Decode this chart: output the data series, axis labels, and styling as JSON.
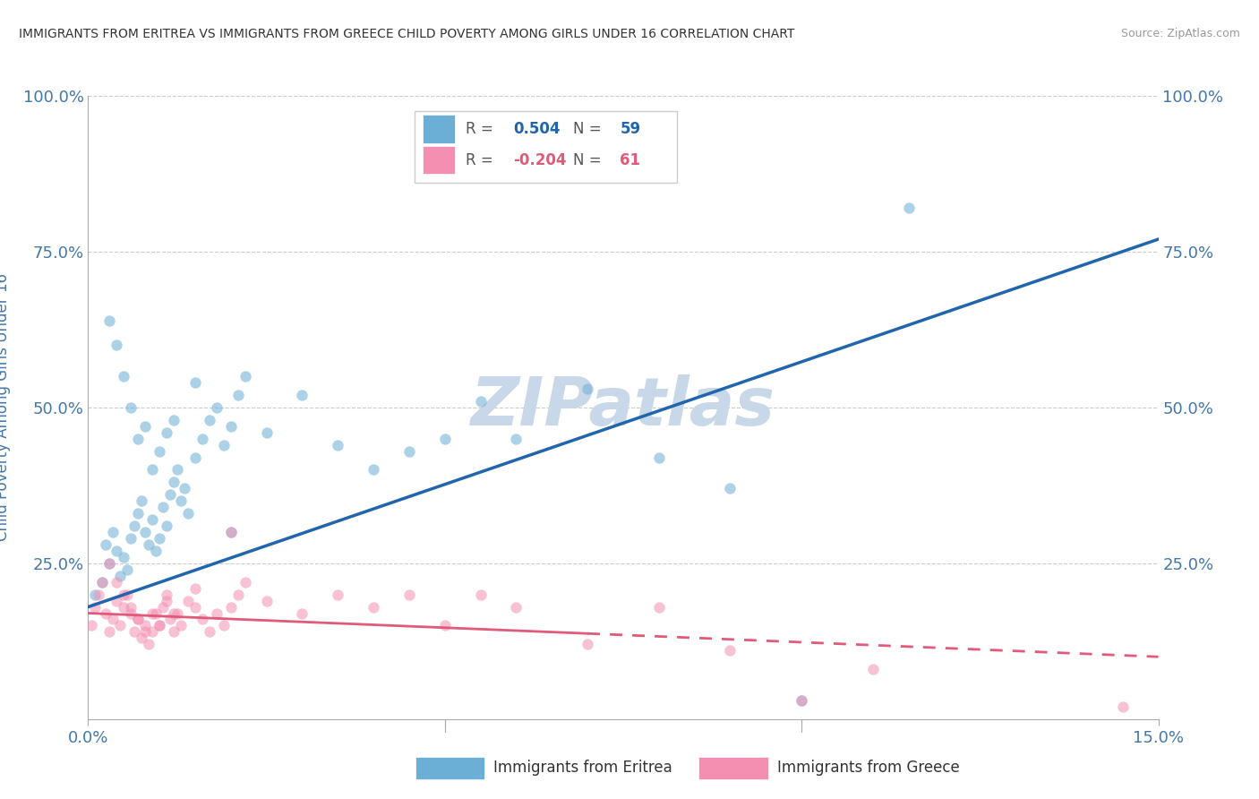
{
  "title": "IMMIGRANTS FROM ERITREA VS IMMIGRANTS FROM GREECE CHILD POVERTY AMONG GIRLS UNDER 16 CORRELATION CHART",
  "source": "Source: ZipAtlas.com",
  "ylabel_label": "Child Poverty Among Girls Under 16",
  "xlim": [
    0,
    15
  ],
  "ylim": [
    0,
    100
  ],
  "x_ticks": [
    0,
    5,
    10,
    15
  ],
  "y_ticks": [
    0,
    25,
    50,
    75,
    100
  ],
  "x_tick_labels": [
    "0.0%",
    "",
    "",
    "15.0%"
  ],
  "y_tick_labels": [
    "",
    "25.0%",
    "50.0%",
    "75.0%",
    "100.0%"
  ],
  "legend1_r": "0.504",
  "legend1_n": "59",
  "legend2_r": "-0.204",
  "legend2_n": "61",
  "blue_line_color": "#2166ac",
  "pink_line_color": "#e05a7a",
  "watermark": "ZIPatlas",
  "watermark_color": "#c8d8e8",
  "background_color": "#ffffff",
  "grid_color": "#cccccc",
  "title_color": "#333333",
  "tick_label_color": "#4477aa",
  "scatter_blue_color": "#6baed6",
  "scatter_pink_color": "#f48fb1",
  "scatter_alpha": 0.55,
  "scatter_size": 80,
  "blue_scatter_x": [
    0.1,
    0.2,
    0.25,
    0.3,
    0.35,
    0.4,
    0.45,
    0.5,
    0.55,
    0.6,
    0.65,
    0.7,
    0.75,
    0.8,
    0.85,
    0.9,
    0.95,
    1.0,
    1.05,
    1.1,
    1.15,
    1.2,
    1.25,
    1.3,
    1.35,
    1.4,
    1.5,
    1.6,
    1.7,
    1.8,
    1.9,
    2.0,
    2.1,
    2.2,
    2.5,
    3.0,
    3.5,
    4.0,
    4.5,
    5.0,
    5.5,
    6.0,
    7.0,
    8.0,
    9.0,
    10.0,
    0.3,
    0.4,
    0.5,
    0.6,
    0.7,
    0.8,
    0.9,
    1.0,
    1.1,
    1.2,
    1.5,
    2.0,
    11.5
  ],
  "blue_scatter_y": [
    20,
    22,
    28,
    25,
    30,
    27,
    23,
    26,
    24,
    29,
    31,
    33,
    35,
    30,
    28,
    32,
    27,
    29,
    34,
    31,
    36,
    38,
    40,
    35,
    37,
    33,
    42,
    45,
    48,
    50,
    44,
    47,
    52,
    55,
    46,
    52,
    44,
    40,
    43,
    45,
    51,
    45,
    53,
    42,
    37,
    3,
    64,
    60,
    55,
    50,
    45,
    47,
    40,
    43,
    46,
    48,
    54,
    30,
    82
  ],
  "pink_scatter_x": [
    0.05,
    0.1,
    0.15,
    0.2,
    0.25,
    0.3,
    0.35,
    0.4,
    0.45,
    0.5,
    0.55,
    0.6,
    0.65,
    0.7,
    0.75,
    0.8,
    0.85,
    0.9,
    0.95,
    1.0,
    1.05,
    1.1,
    1.15,
    1.2,
    1.25,
    1.3,
    1.4,
    1.5,
    1.6,
    1.7,
    1.8,
    1.9,
    2.0,
    2.1,
    2.2,
    2.5,
    3.0,
    3.5,
    4.0,
    4.5,
    5.0,
    5.5,
    6.0,
    7.0,
    8.0,
    9.0,
    10.0,
    11.0,
    0.3,
    0.4,
    0.5,
    0.6,
    0.7,
    0.8,
    0.9,
    1.0,
    1.1,
    1.2,
    1.5,
    2.0,
    14.5
  ],
  "pink_scatter_y": [
    15,
    18,
    20,
    22,
    17,
    14,
    16,
    19,
    15,
    18,
    20,
    17,
    14,
    16,
    13,
    15,
    12,
    14,
    17,
    15,
    18,
    20,
    16,
    14,
    17,
    15,
    19,
    18,
    16,
    14,
    17,
    15,
    18,
    20,
    22,
    19,
    17,
    20,
    18,
    20,
    15,
    20,
    18,
    12,
    18,
    11,
    3,
    8,
    25,
    22,
    20,
    18,
    16,
    14,
    17,
    15,
    19,
    17,
    21,
    30,
    2
  ],
  "blue_line_x0": 0,
  "blue_line_y0": 18,
  "blue_line_x1": 15,
  "blue_line_y1": 77,
  "pink_line_x0": 0,
  "pink_line_y0": 17,
  "pink_line_x1": 15,
  "pink_line_y1": 10,
  "pink_dashed_x0": 7,
  "pink_dashed_x1": 15
}
